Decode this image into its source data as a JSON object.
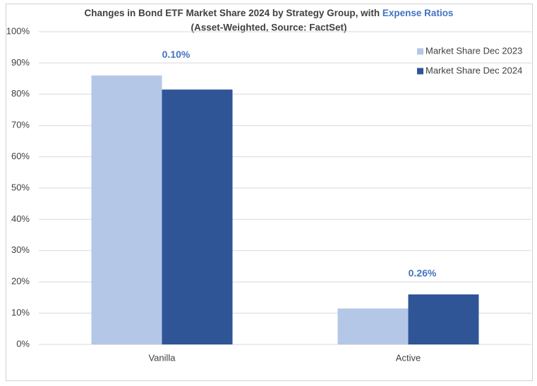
{
  "chart_data": {
    "type": "bar",
    "title": "Changes in Bond ETF Market Share 2024 by Strategy Group, with",
    "title_highlight": "Expense Ratios",
    "subtitle": "(Asset-Weighted, Source: FactSet)",
    "categories": [
      "Vanilla",
      "Active"
    ],
    "series": [
      {
        "name": "Market Share Dec 2023",
        "color": "#b4c7e7",
        "values": [
          86,
          11.5
        ]
      },
      {
        "name": "Market Share Dec 2024",
        "color": "#2f5597",
        "values": [
          81.5,
          16
        ]
      }
    ],
    "annotations": [
      "0.10%",
      "0.26%"
    ],
    "annotation_color": "#4472c4",
    "ylim": [
      0,
      100
    ],
    "yticks": [
      {
        "value": 0,
        "label": "0%"
      },
      {
        "value": 10,
        "label": "10%"
      },
      {
        "value": 20,
        "label": "20%"
      },
      {
        "value": 30,
        "label": "30%"
      },
      {
        "value": 40,
        "label": "40%"
      },
      {
        "value": 50,
        "label": "50%"
      },
      {
        "value": 60,
        "label": "60%"
      },
      {
        "value": 70,
        "label": "70%"
      },
      {
        "value": 80,
        "label": "80%"
      },
      {
        "value": 90,
        "label": "90%"
      },
      {
        "value": 100,
        "label": "100%"
      }
    ],
    "grid": true,
    "legend": "top-right"
  }
}
